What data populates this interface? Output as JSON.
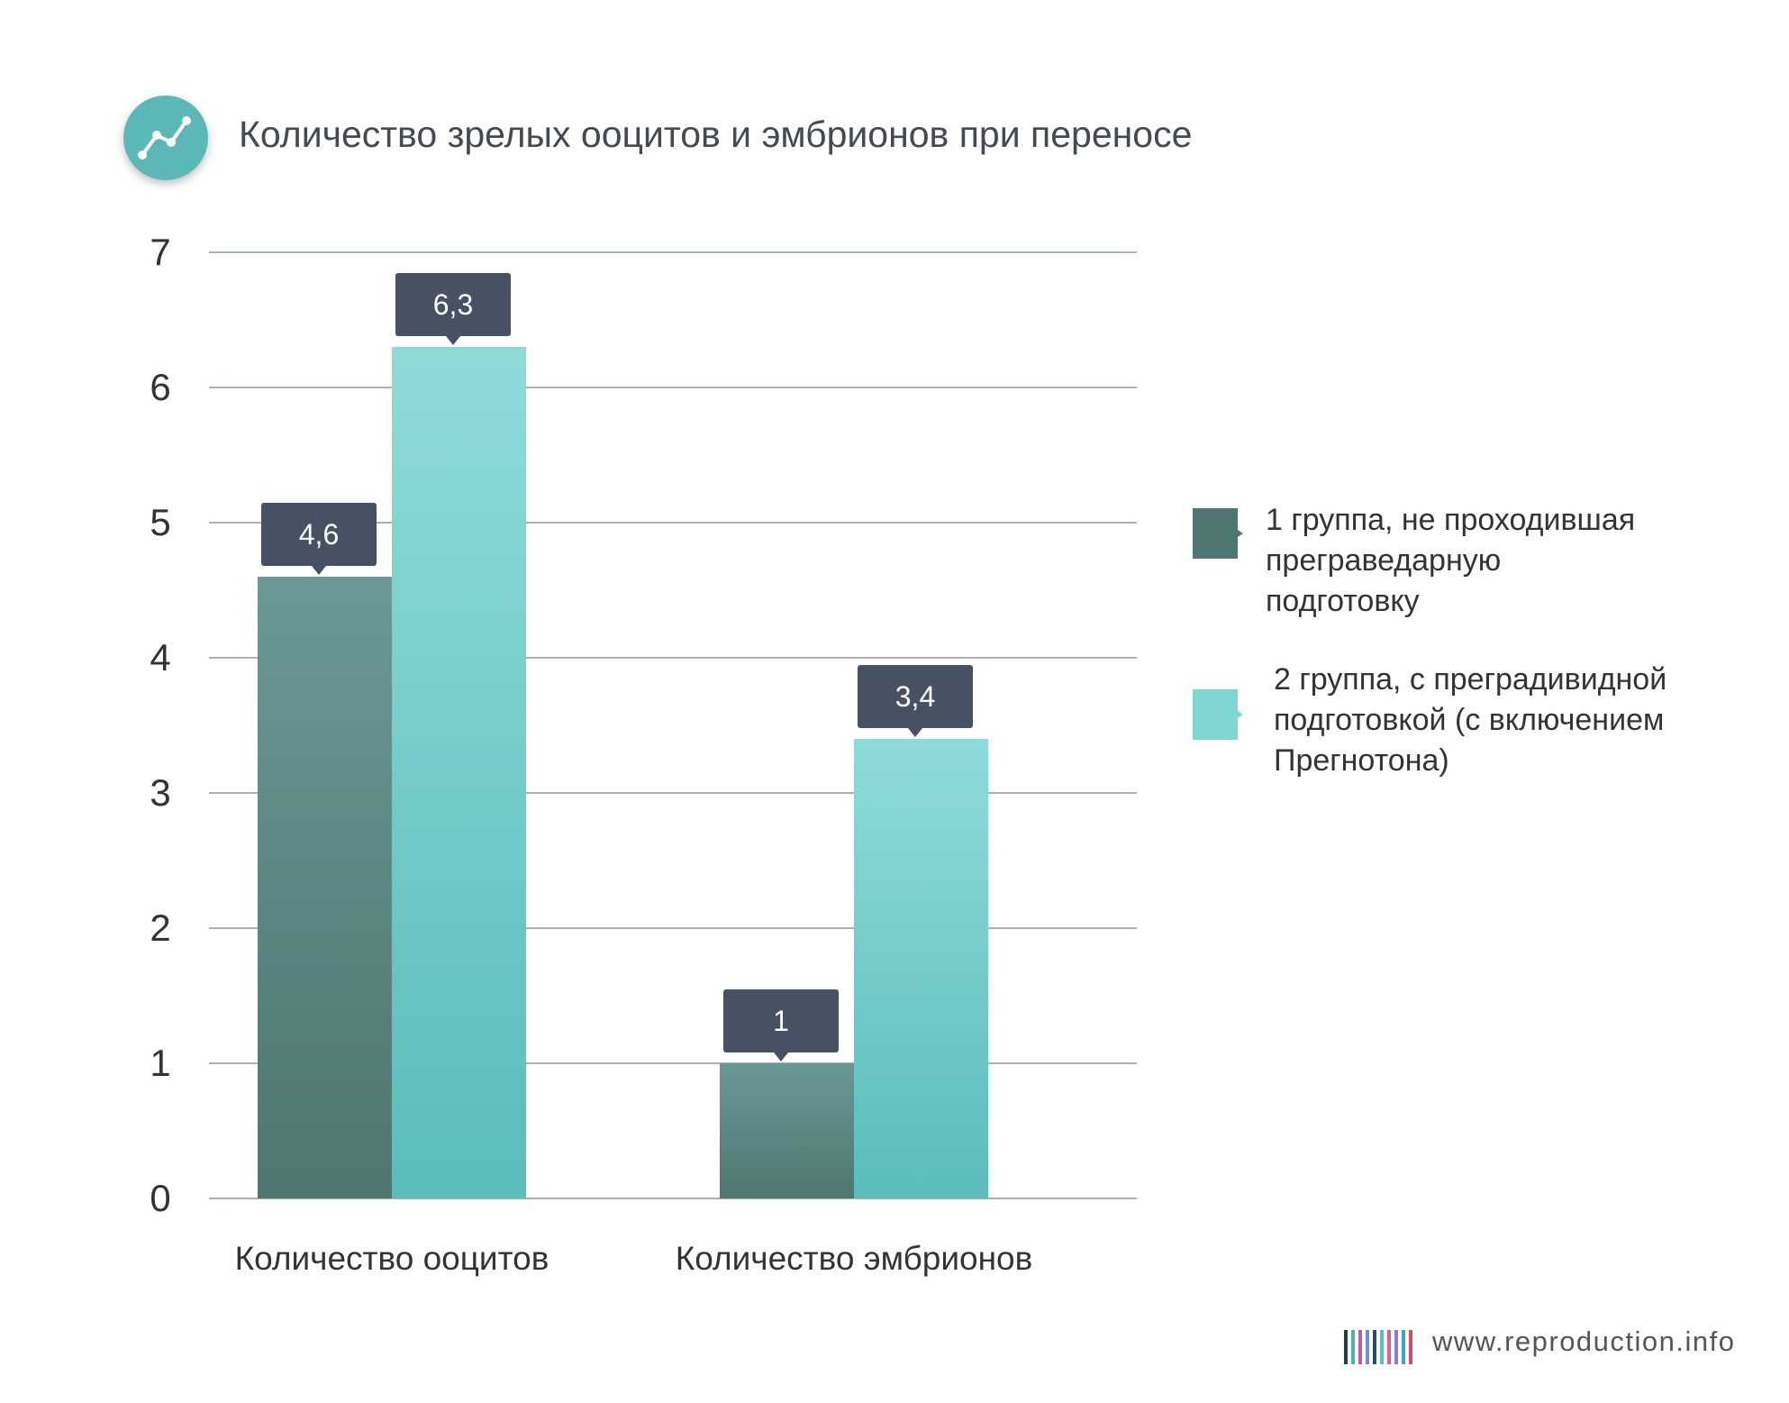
{
  "chart_data": {
    "type": "bar",
    "title": "Количество зрелых ооцитов и эмбрионов при переносе",
    "categories": [
      "Количество ооцитов",
      "Количество эмбрионов"
    ],
    "series": [
      {
        "name": "1 группа, не  проходившая преграведарную подготовку",
        "values": [
          4.6,
          1
        ],
        "labels": [
          "4,6",
          "1"
        ],
        "color": "#4e7672"
      },
      {
        "name": "2 группа, с преградивидной подготовкой (с включением Прегнотона)",
        "values": [
          6.3,
          3.4
        ],
        "labels": [
          "6,3",
          "3,4"
        ],
        "color": "#5bbcb9"
      }
    ],
    "ylim": [
      0,
      7
    ],
    "yticks": [
      "0",
      "1",
      "2",
      "3",
      "4",
      "5",
      "6",
      "7"
    ],
    "grid": true,
    "legend_position": "right",
    "xlabel": "",
    "ylabel": ""
  },
  "legend": {
    "items": [
      {
        "lines": [
          "1 группа, не  проходившая",
          "преграведарную",
          "подготовку"
        ]
      },
      {
        "lines": [
          "2 группа, с преградивидной",
          "подготовкой (с включением",
          "Прегнотона)"
        ]
      }
    ]
  },
  "header": {
    "icon": "trend-line-icon"
  },
  "footer": {
    "site": "www.reproduction.info",
    "logo_icon": "barcode-logo-icon"
  },
  "colors": {
    "series1_top": "#6a9895",
    "series1_bottom": "#4e7672",
    "series2_top": "#8edbd9",
    "series2_bottom": "#5bbcb9",
    "label_box": "#465264",
    "icon_circle": "#5cb7b7"
  }
}
